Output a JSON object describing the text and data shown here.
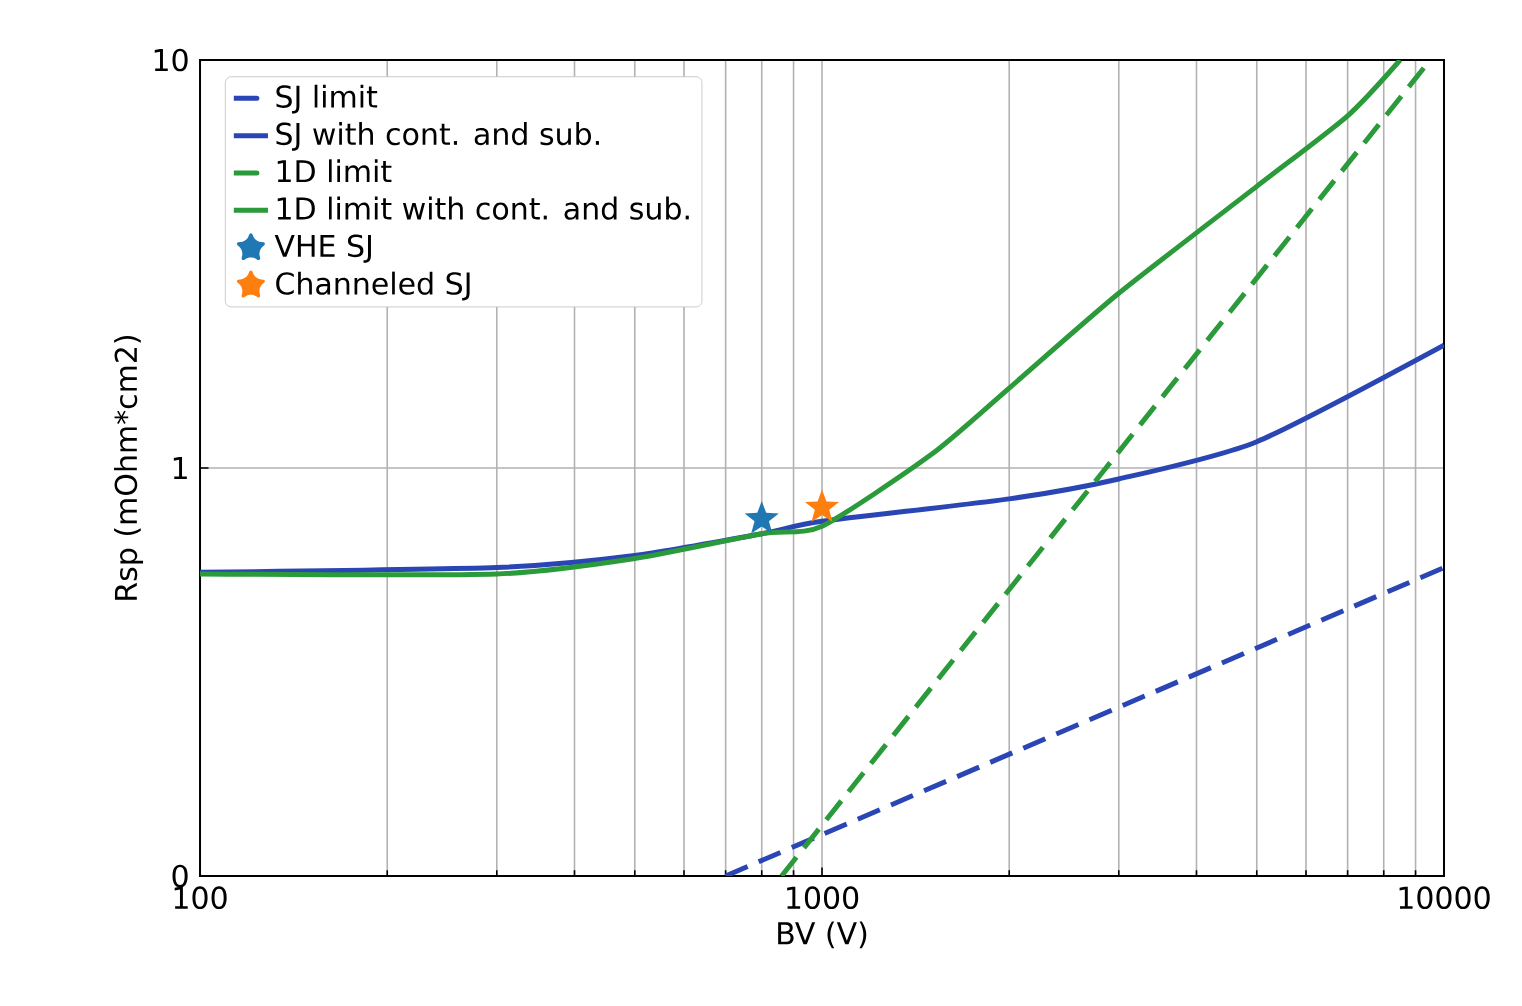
{
  "chart_data": {
    "type": "line",
    "xlabel": "BV (V)",
    "ylabel": "Rsp (mOhm*cm2)",
    "log": "xy",
    "grid": true,
    "legend": "top left",
    "xlim": [
      100,
      10000
    ],
    "xticks": [
      100,
      1000,
      10000
    ],
    "ylim": [
      0.1,
      10
    ],
    "yticks": [
      {
        "value": 0.1,
        "label": "0"
      },
      1,
      10
    ],
    "series": [
      {
        "name": "SJ limit",
        "color": "#2a46b4",
        "line_style": "dashed",
        "marker": "none",
        "x": [
          700,
          10000
        ],
        "values": [
          0.1,
          0.57
        ]
      },
      {
        "name": "SJ with cont. and sub.",
        "color": "#2a46b4",
        "line_style": "solid",
        "marker": "none",
        "x": [
          100,
          300,
          500,
          800,
          1000,
          2000,
          3000,
          5000,
          10000
        ],
        "values": [
          0.555,
          0.57,
          0.61,
          0.69,
          0.74,
          0.84,
          0.94,
          1.16,
          2.0
        ]
      },
      {
        "name": "1D limit",
        "color": "#2a9a3a",
        "line_style": "dashed",
        "marker": "none",
        "x": [
          861,
          9500
        ],
        "values": [
          0.1,
          10
        ]
      },
      {
        "name": "1D limit with cont. and sub.",
        "color": "#2a9a3a",
        "line_style": "solid",
        "marker": "none",
        "x": [
          100,
          300,
          500,
          800,
          1000,
          1500,
          2000,
          3000,
          5000,
          7000,
          8500
        ],
        "values": [
          0.55,
          0.55,
          0.6,
          0.69,
          0.72,
          1.08,
          1.57,
          2.68,
          4.9,
          7.3,
          10
        ]
      },
      {
        "name": "VHE SJ",
        "type": "scatter",
        "color": "#1f77b4",
        "marker": "star",
        "x": [
          800
        ],
        "values": [
          0.75
        ]
      },
      {
        "name": "Channeled SJ",
        "type": "scatter",
        "color": "#ff7f0e",
        "marker": "star",
        "x": [
          1000
        ],
        "values": [
          0.8
        ]
      }
    ]
  }
}
